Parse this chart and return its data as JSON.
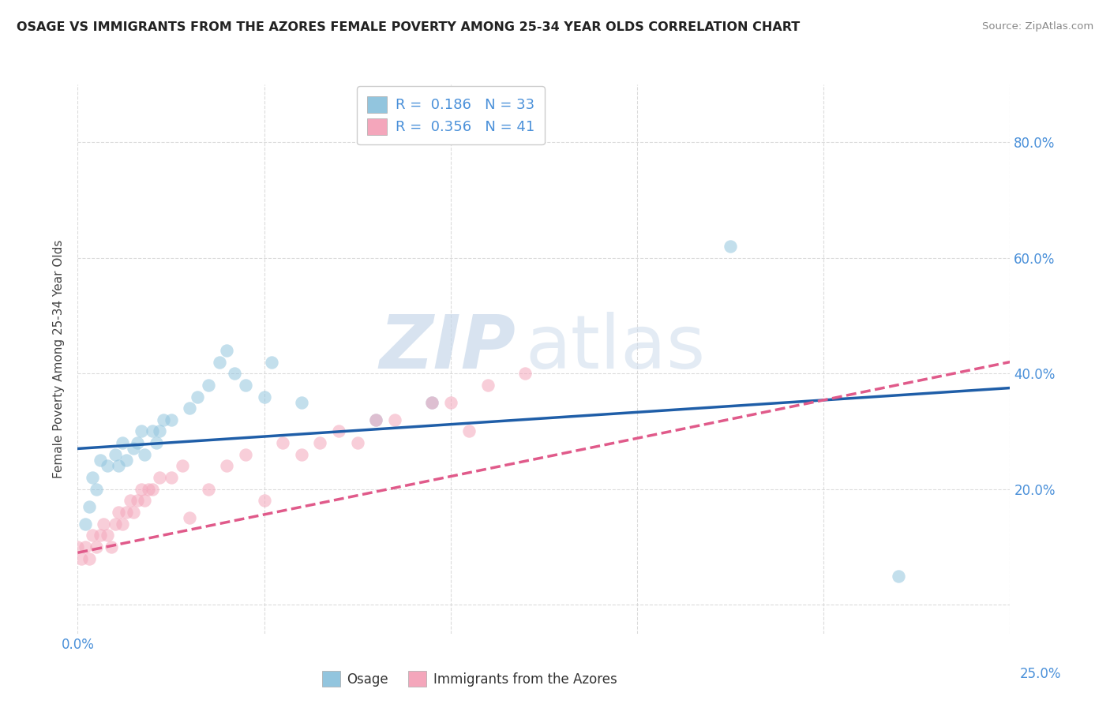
{
  "title": "OSAGE VS IMMIGRANTS FROM THE AZORES FEMALE POVERTY AMONG 25-34 YEAR OLDS CORRELATION CHART",
  "source": "Source: ZipAtlas.com",
  "ylabel": "Female Poverty Among 25-34 Year Olds",
  "xlim": [
    0.0,
    0.25
  ],
  "ylim": [
    -0.05,
    0.9
  ],
  "x_ticks": [
    0.0,
    0.05,
    0.1,
    0.15,
    0.2,
    0.25
  ],
  "x_tick_labels_left": [
    "0.0%",
    "",
    "",
    "",
    "",
    ""
  ],
  "x_tick_labels_right": [
    "",
    "",
    "",
    "",
    "",
    "25.0%"
  ],
  "y_ticks": [
    0.0,
    0.2,
    0.4,
    0.6,
    0.8
  ],
  "y_tick_labels": [
    "",
    "20.0%",
    "40.0%",
    "60.0%",
    "80.0%"
  ],
  "legend1_label": "Osage",
  "legend2_label": "Immigrants from the Azores",
  "watermark_zip": "ZIP",
  "watermark_atlas": "atlas",
  "blue_color": "#92c5de",
  "pink_color": "#f4a6bb",
  "line_blue": "#1f5ea8",
  "line_pink": "#e05a8a",
  "osage_x": [
    0.002,
    0.003,
    0.004,
    0.005,
    0.006,
    0.008,
    0.01,
    0.011,
    0.012,
    0.013,
    0.015,
    0.016,
    0.017,
    0.018,
    0.02,
    0.021,
    0.022,
    0.023,
    0.025,
    0.03,
    0.032,
    0.035,
    0.038,
    0.04,
    0.042,
    0.045,
    0.05,
    0.052,
    0.06,
    0.08,
    0.095,
    0.175,
    0.22
  ],
  "osage_y": [
    0.14,
    0.17,
    0.22,
    0.2,
    0.25,
    0.24,
    0.26,
    0.24,
    0.28,
    0.25,
    0.27,
    0.28,
    0.3,
    0.26,
    0.3,
    0.28,
    0.3,
    0.32,
    0.32,
    0.34,
    0.36,
    0.38,
    0.42,
    0.44,
    0.4,
    0.38,
    0.36,
    0.42,
    0.35,
    0.32,
    0.35,
    0.62,
    0.05
  ],
  "azores_x": [
    0.0,
    0.001,
    0.002,
    0.003,
    0.004,
    0.005,
    0.006,
    0.007,
    0.008,
    0.009,
    0.01,
    0.011,
    0.012,
    0.013,
    0.014,
    0.015,
    0.016,
    0.017,
    0.018,
    0.019,
    0.02,
    0.022,
    0.025,
    0.028,
    0.03,
    0.035,
    0.04,
    0.045,
    0.05,
    0.055,
    0.06,
    0.065,
    0.07,
    0.075,
    0.08,
    0.085,
    0.095,
    0.1,
    0.105,
    0.11,
    0.12
  ],
  "azores_y": [
    0.1,
    0.08,
    0.1,
    0.08,
    0.12,
    0.1,
    0.12,
    0.14,
    0.12,
    0.1,
    0.14,
    0.16,
    0.14,
    0.16,
    0.18,
    0.16,
    0.18,
    0.2,
    0.18,
    0.2,
    0.2,
    0.22,
    0.22,
    0.24,
    0.15,
    0.2,
    0.24,
    0.26,
    0.18,
    0.28,
    0.26,
    0.28,
    0.3,
    0.28,
    0.32,
    0.32,
    0.35,
    0.35,
    0.3,
    0.38,
    0.4
  ],
  "osage_trend_x": [
    0.0,
    0.25
  ],
  "osage_trend_y": [
    0.27,
    0.375
  ],
  "azores_trend_x": [
    0.0,
    0.25
  ],
  "azores_trend_y": [
    0.09,
    0.42
  ]
}
